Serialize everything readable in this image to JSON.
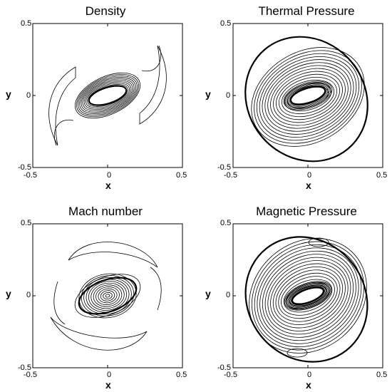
{
  "chart_data": [
    {
      "type": "contour",
      "title": "Density",
      "xlabel": "x",
      "ylabel": "y",
      "xlim": [
        -0.5,
        0.5
      ],
      "ylim": [
        -0.5,
        0.5
      ],
      "xticks": [
        "-0.5",
        "0",
        "0.5"
      ],
      "yticks": [
        "0.5",
        "0",
        "-0.5"
      ],
      "grid": false,
      "legend": "none"
    },
    {
      "type": "contour",
      "title": "Thermal Pressure",
      "xlabel": "x",
      "ylabel": "y",
      "xlim": [
        -0.5,
        0.5
      ],
      "ylim": [
        -0.5,
        0.5
      ],
      "xticks": [
        "-0.5",
        "0",
        "0.5"
      ],
      "yticks": [
        "0.5",
        "0",
        "-0.5"
      ],
      "grid": false,
      "legend": "none"
    },
    {
      "type": "contour",
      "title": "Mach number",
      "xlabel": "x",
      "ylabel": "y",
      "xlim": [
        -0.5,
        0.5
      ],
      "ylim": [
        -0.5,
        0.5
      ],
      "xticks": [
        "-0.5",
        "0",
        "0.5"
      ],
      "yticks": [
        "0.5",
        "0",
        "-0.5"
      ],
      "grid": false,
      "legend": "none"
    },
    {
      "type": "contour",
      "title": "Magnetic Pressure",
      "xlabel": "x",
      "ylabel": "y",
      "xlim": [
        -0.5,
        0.5
      ],
      "ylim": [
        -0.5,
        0.5
      ],
      "xticks": [
        "-0.5",
        "0",
        "0.5"
      ],
      "yticks": [
        "0.5",
        "0",
        "-0.5"
      ],
      "grid": false,
      "legend": "none"
    }
  ],
  "colors": {
    "ink": "#000000",
    "background": "#ffffff"
  }
}
